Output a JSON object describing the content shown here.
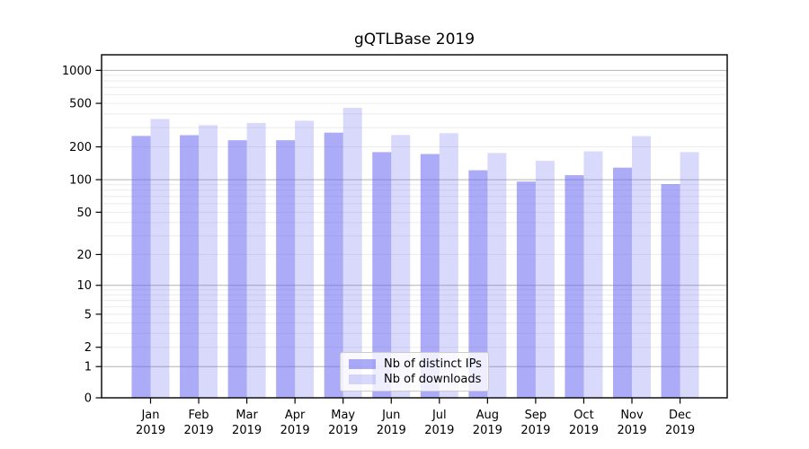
{
  "figure": {
    "title": "gQTLBase 2019"
  },
  "chart_data": {
    "type": "bar",
    "title": "gQTLBase 2019",
    "xlabel": "",
    "ylabel": "",
    "categories": [
      "Jan 2019",
      "Feb 2019",
      "Mar 2019",
      "Apr 2019",
      "May 2019",
      "Jun 2019",
      "Jul 2019",
      "Aug 2019",
      "Sep 2019",
      "Oct 2019",
      "Nov 2019",
      "Dec 2019"
    ],
    "series": [
      {
        "name": "Nb of distinct IPs",
        "color": "#6666F08C",
        "values": [
          252,
          256,
          230,
          230,
          270,
          179,
          172,
          122,
          96,
          110,
          129,
          91
        ]
      },
      {
        "name": "Nb of downloads",
        "color": "#6666F040",
        "values": [
          360,
          316,
          331,
          347,
          455,
          257,
          267,
          176,
          149,
          182,
          251,
          179
        ]
      }
    ],
    "yscale": "log1p",
    "ylim": [
      0,
      1440
    ],
    "y_ticks": [
      0,
      1,
      2,
      5,
      10,
      20,
      50,
      100,
      200,
      500,
      1000
    ],
    "grid": {
      "enabled": true,
      "major_color": "#b3b3b3",
      "minor_color": "#ebebeb"
    },
    "legend_position": "lower center",
    "axis_color": "#000000",
    "tick_label_color": "#000000"
  }
}
